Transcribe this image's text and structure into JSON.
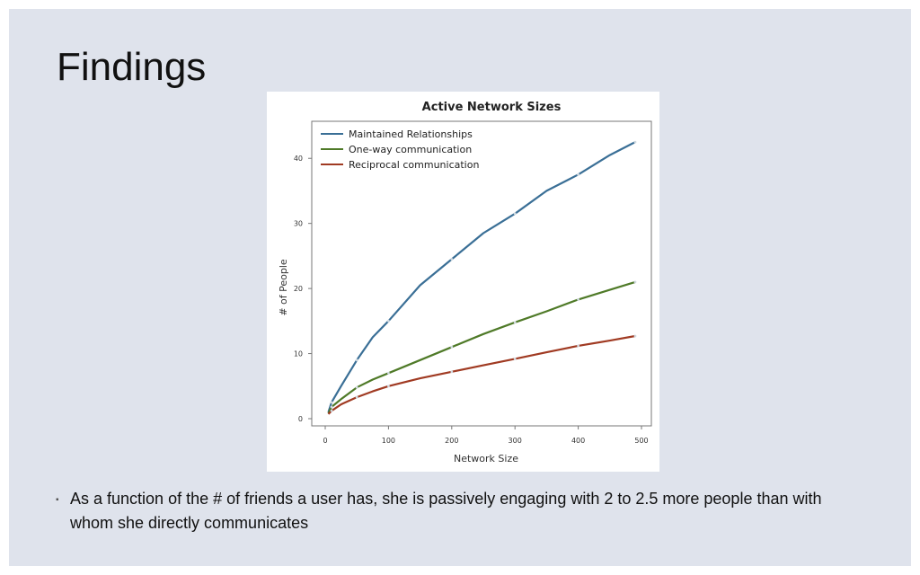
{
  "slide": {
    "title": "Findings",
    "bullet": "As a function of the # of friends a user has, she is passively engaging with 2 to 2.5 more people than with whom she directly communicates"
  },
  "chart_data": {
    "type": "line",
    "title": "Active Network Sizes",
    "xlabel": "Network Size",
    "ylabel": "# of People",
    "xlim": [
      0,
      500
    ],
    "ylim": [
      0,
      45
    ],
    "xticks": [
      0,
      100,
      200,
      300,
      400,
      500
    ],
    "yticks": [
      0,
      10,
      20,
      30,
      40
    ],
    "grid": false,
    "legend": "top-left",
    "series": [
      {
        "name": "Maintained Relationships",
        "color": "#3a6f96",
        "x": [
          5,
          10,
          25,
          50,
          75,
          100,
          150,
          200,
          250,
          300,
          350,
          400,
          450,
          490
        ],
        "values": [
          1,
          2.5,
          5,
          9,
          12.5,
          15,
          20.5,
          24.5,
          28.5,
          31.5,
          35,
          37.5,
          40.5,
          42.5
        ]
      },
      {
        "name": "One-way communication",
        "color": "#4f7a28",
        "x": [
          5,
          10,
          25,
          50,
          75,
          100,
          150,
          200,
          250,
          300,
          350,
          400,
          450,
          490
        ],
        "values": [
          0.8,
          1.8,
          3,
          4.8,
          6,
          7,
          9,
          11,
          13,
          14.8,
          16.5,
          18.3,
          19.8,
          21
        ]
      },
      {
        "name": "Reciprocal communication",
        "color": "#a03a22",
        "x": [
          5,
          10,
          25,
          50,
          75,
          100,
          150,
          200,
          250,
          300,
          350,
          400,
          450,
          490
        ],
        "values": [
          0.7,
          1.2,
          2.2,
          3.3,
          4.2,
          5,
          6.2,
          7.2,
          8.2,
          9.2,
          10.2,
          11.2,
          12,
          12.7
        ]
      }
    ]
  }
}
